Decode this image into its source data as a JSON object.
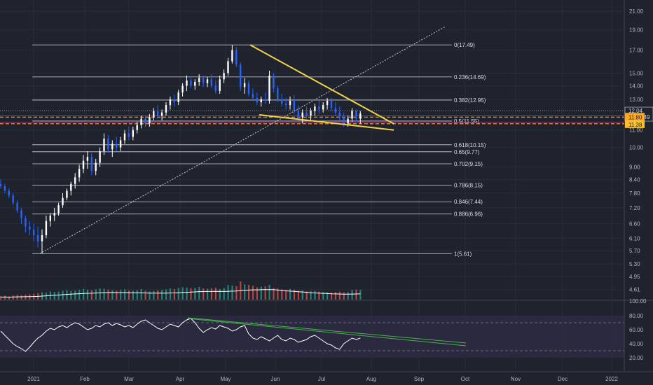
{
  "chart_data": {
    "type": "candlestick",
    "colors": {
      "background": "#1f232d",
      "grid": "#2a2e39",
      "candle_up": "#ffffff",
      "candle_down": "#2962ff",
      "fib_line": "#d1d4dc",
      "wedge": "#f2d24b",
      "trend_dotted": "#c8c8c8",
      "support_orange": "#ffa726",
      "support_purple": "#9c27b0",
      "volume_up": "#26a69a",
      "volume_down": "#ef5350",
      "volume_ma": "#ffffff",
      "rsi_line": "#ffffff",
      "rsi_band": "#7e57c2",
      "rsi_trend": "#4caf50"
    },
    "price_axis": {
      "ticks": [
        "21.00",
        "19.00",
        "17.00",
        "15.00",
        "14.00",
        "13.00",
        "11.00",
        "10.00",
        "9.00",
        "8.40",
        "7.80",
        "7.20",
        "6.60",
        "6.10",
        "5.70",
        "5.30",
        "4.95",
        "4.61"
      ],
      "scale": "log",
      "range": [
        4.45,
        22.0
      ]
    },
    "time_axis": {
      "ticks": [
        "2021",
        "Feb",
        "Mar",
        "Apr",
        "May",
        "Jun",
        "Jul",
        "Aug",
        "Sep",
        "Oct",
        "Nov",
        "Dec",
        "2022"
      ]
    },
    "price_tags": {
      "last": "12.04",
      "countdown": "11:52:49",
      "orange_level": "11.80",
      "purple_level": "11.38"
    },
    "fibonacci": [
      {
        "label": "0(17.49)",
        "price": 17.49
      },
      {
        "label": "0.236(14.69)",
        "price": 14.69
      },
      {
        "label": "0.382(12.95)",
        "price": 12.95
      },
      {
        "label": "0.5(11.55)",
        "price": 11.55
      },
      {
        "label": "0.618(10.15)",
        "price": 10.15
      },
      {
        "label": "0.65(9.77)",
        "price": 9.77
      },
      {
        "label": "0.702(9.15)",
        "price": 9.15
      },
      {
        "label": "0.786(8.15)",
        "price": 8.15
      },
      {
        "label": "0.846(7.44)",
        "price": 7.44
      },
      {
        "label": "0.886(6.96)",
        "price": 6.96
      },
      {
        "label": "1(5.61)",
        "price": 5.61
      }
    ],
    "candles": [
      {
        "d": 0,
        "o": 8.2,
        "h": 8.4,
        "l": 8.0,
        "c": 8.1
      },
      {
        "d": 2,
        "o": 8.1,
        "h": 8.2,
        "l": 7.8,
        "c": 7.9
      },
      {
        "d": 4,
        "o": 7.9,
        "h": 8.0,
        "l": 7.6,
        "c": 7.7
      },
      {
        "d": 6,
        "o": 7.7,
        "h": 7.8,
        "l": 7.3,
        "c": 7.4
      },
      {
        "d": 8,
        "o": 7.4,
        "h": 7.5,
        "l": 7.0,
        "c": 7.1
      },
      {
        "d": 10,
        "o": 7.1,
        "h": 7.2,
        "l": 6.6,
        "c": 6.8
      },
      {
        "d": 12,
        "o": 6.8,
        "h": 6.9,
        "l": 6.3,
        "c": 6.5
      },
      {
        "d": 14,
        "o": 6.5,
        "h": 6.7,
        "l": 6.2,
        "c": 6.4
      },
      {
        "d": 16,
        "o": 6.4,
        "h": 6.6,
        "l": 6.0,
        "c": 6.2
      },
      {
        "d": 18,
        "o": 6.2,
        "h": 6.5,
        "l": 5.8,
        "c": 6.0
      },
      {
        "d": 20,
        "o": 6.0,
        "h": 6.4,
        "l": 5.61,
        "c": 6.2
      },
      {
        "d": 22,
        "o": 6.2,
        "h": 6.9,
        "l": 6.1,
        "c": 6.7
      },
      {
        "d": 24,
        "o": 6.7,
        "h": 7.0,
        "l": 6.5,
        "c": 6.9
      },
      {
        "d": 26,
        "o": 6.9,
        "h": 7.2,
        "l": 6.7,
        "c": 7.0
      },
      {
        "d": 28,
        "o": 7.0,
        "h": 7.4,
        "l": 6.9,
        "c": 7.3
      },
      {
        "d": 30,
        "o": 7.3,
        "h": 7.8,
        "l": 7.2,
        "c": 7.6
      },
      {
        "d": 32,
        "o": 7.6,
        "h": 8.0,
        "l": 7.5,
        "c": 7.9
      },
      {
        "d": 34,
        "o": 7.9,
        "h": 8.3,
        "l": 7.7,
        "c": 8.2
      },
      {
        "d": 36,
        "o": 8.2,
        "h": 8.7,
        "l": 8.0,
        "c": 8.5
      },
      {
        "d": 38,
        "o": 8.5,
        "h": 9.1,
        "l": 8.3,
        "c": 8.9
      },
      {
        "d": 40,
        "o": 8.9,
        "h": 9.6,
        "l": 8.7,
        "c": 9.3
      },
      {
        "d": 42,
        "o": 9.3,
        "h": 9.8,
        "l": 8.9,
        "c": 9.5
      },
      {
        "d": 44,
        "o": 9.5,
        "h": 9.7,
        "l": 8.6,
        "c": 8.8
      },
      {
        "d": 46,
        "o": 8.8,
        "h": 9.4,
        "l": 8.6,
        "c": 9.2
      },
      {
        "d": 48,
        "o": 9.2,
        "h": 10.0,
        "l": 9.0,
        "c": 9.8
      },
      {
        "d": 50,
        "o": 9.8,
        "h": 10.8,
        "l": 9.6,
        "c": 10.5
      },
      {
        "d": 52,
        "o": 10.5,
        "h": 10.7,
        "l": 9.7,
        "c": 9.9
      },
      {
        "d": 54,
        "o": 9.9,
        "h": 10.4,
        "l": 9.5,
        "c": 10.2
      },
      {
        "d": 56,
        "o": 10.2,
        "h": 10.6,
        "l": 9.8,
        "c": 10.0
      },
      {
        "d": 58,
        "o": 10.0,
        "h": 10.6,
        "l": 9.8,
        "c": 10.4
      },
      {
        "d": 60,
        "o": 10.4,
        "h": 11.0,
        "l": 10.2,
        "c": 10.8
      },
      {
        "d": 62,
        "o": 10.8,
        "h": 11.2,
        "l": 10.4,
        "c": 10.6
      },
      {
        "d": 64,
        "o": 10.6,
        "h": 11.2,
        "l": 10.4,
        "c": 11.0
      },
      {
        "d": 66,
        "o": 11.0,
        "h": 11.5,
        "l": 10.8,
        "c": 11.3
      },
      {
        "d": 68,
        "o": 11.3,
        "h": 11.9,
        "l": 11.1,
        "c": 11.7
      },
      {
        "d": 70,
        "o": 11.7,
        "h": 11.9,
        "l": 11.2,
        "c": 11.4
      },
      {
        "d": 72,
        "o": 11.4,
        "h": 12.0,
        "l": 11.2,
        "c": 11.8
      },
      {
        "d": 74,
        "o": 11.8,
        "h": 12.4,
        "l": 11.6,
        "c": 12.2
      },
      {
        "d": 76,
        "o": 12.2,
        "h": 12.6,
        "l": 11.7,
        "c": 11.9
      },
      {
        "d": 78,
        "o": 11.9,
        "h": 12.3,
        "l": 11.6,
        "c": 12.1
      },
      {
        "d": 80,
        "o": 12.1,
        "h": 12.8,
        "l": 11.9,
        "c": 12.6
      },
      {
        "d": 82,
        "o": 12.6,
        "h": 13.2,
        "l": 12.3,
        "c": 13.0
      },
      {
        "d": 84,
        "o": 13.0,
        "h": 13.3,
        "l": 12.5,
        "c": 12.8
      },
      {
        "d": 86,
        "o": 12.8,
        "h": 13.7,
        "l": 12.6,
        "c": 13.5
      },
      {
        "d": 88,
        "o": 13.5,
        "h": 14.2,
        "l": 13.2,
        "c": 14.0
      },
      {
        "d": 90,
        "o": 14.0,
        "h": 14.8,
        "l": 13.6,
        "c": 14.4
      },
      {
        "d": 92,
        "o": 14.4,
        "h": 14.6,
        "l": 13.8,
        "c": 14.0
      },
      {
        "d": 94,
        "o": 14.0,
        "h": 14.5,
        "l": 13.7,
        "c": 14.3
      },
      {
        "d": 96,
        "o": 14.3,
        "h": 14.9,
        "l": 14.0,
        "c": 14.6
      },
      {
        "d": 98,
        "o": 14.6,
        "h": 14.8,
        "l": 13.9,
        "c": 14.2
      },
      {
        "d": 100,
        "o": 14.2,
        "h": 14.7,
        "l": 13.9,
        "c": 14.5
      },
      {
        "d": 102,
        "o": 14.5,
        "h": 14.9,
        "l": 13.8,
        "c": 14.0
      },
      {
        "d": 104,
        "o": 14.0,
        "h": 14.4,
        "l": 13.4,
        "c": 13.6
      },
      {
        "d": 106,
        "o": 13.6,
        "h": 14.8,
        "l": 13.4,
        "c": 14.5
      },
      {
        "d": 108,
        "o": 14.5,
        "h": 15.3,
        "l": 14.2,
        "c": 15.0
      },
      {
        "d": 110,
        "o": 15.0,
        "h": 16.3,
        "l": 14.8,
        "c": 16.0
      },
      {
        "d": 112,
        "o": 16.0,
        "h": 17.49,
        "l": 15.8,
        "c": 17.0
      },
      {
        "d": 114,
        "o": 17.0,
        "h": 17.3,
        "l": 15.5,
        "c": 15.7
      },
      {
        "d": 116,
        "o": 15.7,
        "h": 15.9,
        "l": 13.6,
        "c": 13.9
      },
      {
        "d": 118,
        "o": 13.9,
        "h": 14.6,
        "l": 13.4,
        "c": 14.2
      },
      {
        "d": 120,
        "o": 14.2,
        "h": 14.4,
        "l": 13.2,
        "c": 13.4
      },
      {
        "d": 122,
        "o": 13.4,
        "h": 13.8,
        "l": 12.9,
        "c": 13.1
      },
      {
        "d": 124,
        "o": 13.1,
        "h": 13.5,
        "l": 12.6,
        "c": 12.8
      },
      {
        "d": 126,
        "o": 12.8,
        "h": 13.2,
        "l": 12.5,
        "c": 13.0
      },
      {
        "d": 128,
        "o": 13.0,
        "h": 13.5,
        "l": 12.7,
        "c": 12.9
      },
      {
        "d": 130,
        "o": 12.9,
        "h": 15.2,
        "l": 12.7,
        "c": 14.8
      },
      {
        "d": 132,
        "o": 14.8,
        "h": 15.0,
        "l": 13.5,
        "c": 13.8
      },
      {
        "d": 134,
        "o": 13.8,
        "h": 14.0,
        "l": 12.8,
        "c": 13.0
      },
      {
        "d": 136,
        "o": 13.0,
        "h": 13.4,
        "l": 12.5,
        "c": 12.7
      },
      {
        "d": 138,
        "o": 12.7,
        "h": 13.1,
        "l": 12.3,
        "c": 12.6
      },
      {
        "d": 140,
        "o": 12.6,
        "h": 13.2,
        "l": 12.3,
        "c": 12.9
      },
      {
        "d": 142,
        "o": 12.9,
        "h": 13.3,
        "l": 12.0,
        "c": 12.2
      },
      {
        "d": 144,
        "o": 12.2,
        "h": 12.6,
        "l": 11.6,
        "c": 11.8
      },
      {
        "d": 146,
        "o": 11.8,
        "h": 12.3,
        "l": 11.4,
        "c": 12.1
      },
      {
        "d": 148,
        "o": 12.1,
        "h": 12.5,
        "l": 11.7,
        "c": 11.9
      },
      {
        "d": 150,
        "o": 11.9,
        "h": 12.4,
        "l": 11.6,
        "c": 12.2
      },
      {
        "d": 152,
        "o": 12.2,
        "h": 12.7,
        "l": 11.9,
        "c": 12.5
      },
      {
        "d": 154,
        "o": 12.5,
        "h": 12.9,
        "l": 12.0,
        "c": 12.3
      },
      {
        "d": 156,
        "o": 12.3,
        "h": 12.8,
        "l": 12.1,
        "c": 12.6
      },
      {
        "d": 158,
        "o": 12.6,
        "h": 13.1,
        "l": 12.3,
        "c": 12.9
      },
      {
        "d": 160,
        "o": 12.9,
        "h": 13.1,
        "l": 12.2,
        "c": 12.4
      },
      {
        "d": 162,
        "o": 12.4,
        "h": 12.8,
        "l": 11.9,
        "c": 12.1
      },
      {
        "d": 164,
        "o": 12.1,
        "h": 12.5,
        "l": 11.6,
        "c": 11.8
      },
      {
        "d": 166,
        "o": 11.8,
        "h": 12.1,
        "l": 11.2,
        "c": 11.4
      },
      {
        "d": 168,
        "o": 11.4,
        "h": 11.9,
        "l": 11.2,
        "c": 11.7
      },
      {
        "d": 170,
        "o": 11.7,
        "h": 12.4,
        "l": 11.5,
        "c": 12.2
      },
      {
        "d": 172,
        "o": 12.2,
        "h": 12.3,
        "l": 11.5,
        "c": 11.7
      },
      {
        "d": 174,
        "o": 11.7,
        "h": 12.2,
        "l": 11.4,
        "c": 12.04
      }
    ],
    "volume": [
      0.12,
      0.13,
      0.11,
      0.14,
      0.16,
      0.15,
      0.17,
      0.18,
      0.2,
      0.22,
      0.25,
      0.24,
      0.28,
      0.26,
      0.27,
      0.3,
      0.32,
      0.29,
      0.31,
      0.33,
      0.36,
      0.34,
      0.32,
      0.35,
      0.38,
      0.37,
      0.34,
      0.32,
      0.3,
      0.33,
      0.35,
      0.31,
      0.3,
      0.32,
      0.36,
      0.3,
      0.28,
      0.29,
      0.31,
      0.33,
      0.35,
      0.38,
      0.36,
      0.4,
      0.42,
      0.41,
      0.39,
      0.4,
      0.43,
      0.38,
      0.37,
      0.39,
      0.41,
      0.36,
      0.4,
      0.5,
      0.48,
      0.46,
      0.62,
      0.52,
      0.5,
      0.47,
      0.42,
      0.44,
      0.45,
      0.5,
      0.4,
      0.38,
      0.35,
      0.33,
      0.36,
      0.34,
      0.3,
      0.31,
      0.28,
      0.29,
      0.3,
      0.27,
      0.26,
      0.25,
      0.24,
      0.26,
      0.27,
      0.25,
      0.26,
      0.33,
      0.34,
      0.33
    ],
    "rsi": {
      "ticks": [
        "100.00",
        "80.00",
        "60.00",
        "40.00",
        "20.00"
      ],
      "band": [
        30,
        70
      ],
      "values": [
        58,
        52,
        46,
        40,
        36,
        33,
        29,
        35,
        42,
        48,
        52,
        58,
        62,
        60,
        64,
        66,
        63,
        67,
        70,
        68,
        64,
        60,
        62,
        66,
        64,
        68,
        70,
        66,
        69,
        67,
        64,
        66,
        63,
        68,
        72,
        74,
        70,
        66,
        62,
        60,
        64,
        68,
        66,
        64,
        70,
        74,
        76,
        70,
        62,
        56,
        60,
        63,
        61,
        66,
        64,
        62,
        58,
        60,
        64,
        66,
        54,
        48,
        46,
        50,
        47,
        44,
        48,
        52,
        46,
        44,
        48,
        46,
        42,
        44,
        46,
        50,
        52,
        48,
        44,
        40,
        38,
        34,
        32,
        40,
        44,
        48,
        46,
        48
      ]
    }
  }
}
